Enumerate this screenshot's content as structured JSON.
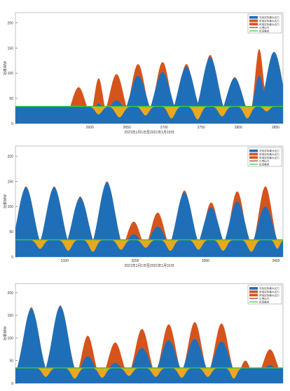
{
  "colors": {
    "pv": "#1f6fb8",
    "wind": "#d5541c",
    "load": "#e9a81e",
    "thermal": "#a52a2a",
    "baseline": "#33cc33"
  },
  "chart_data": [
    {
      "type": "area",
      "xlabel": "2021年1月1日至2021年1月15日",
      "ylabel": "功率/MW",
      "xlim": [
        2500,
        2860
      ],
      "ylim": [
        0,
        220
      ],
      "xticks": [
        2600,
        2650,
        2700,
        2750,
        2800,
        2850
      ],
      "yticks": [
        0,
        50,
        100,
        150,
        200
      ],
      "baseline": 34,
      "legend": [
        "光伏实际最大出力",
        "风电实际最大出力",
        "风电实际最大出力",
        "火电出力",
        "负荷需求"
      ],
      "legend_position": "top-right",
      "peaks": [
        {
          "x": 2585,
          "pv": 32,
          "wind": 72,
          "width": 16
        },
        {
          "x": 2612,
          "pv": 40,
          "wind": 90,
          "width": 10
        },
        {
          "x": 2636,
          "pv": 46,
          "wind": 98,
          "width": 16
        },
        {
          "x": 2665,
          "pv": 95,
          "wind": 118,
          "width": 16
        },
        {
          "x": 2698,
          "pv": 102,
          "wind": 122,
          "width": 16
        },
        {
          "x": 2730,
          "pv": 113,
          "wind": 118,
          "width": 16
        },
        {
          "x": 2762,
          "pv": 132,
          "wind": 136,
          "width": 16
        },
        {
          "x": 2795,
          "pv": 90,
          "wind": 92,
          "width": 16
        },
        {
          "x": 2828,
          "pv": 95,
          "wind": 148,
          "width": 10
        },
        {
          "x": 2848,
          "pv": 142,
          "wind": 142,
          "width": 16
        }
      ],
      "dips": [
        {
          "x": 2612,
          "depth": 16,
          "width": 14
        },
        {
          "x": 2640,
          "depth": 22,
          "width": 16
        },
        {
          "x": 2675,
          "depth": 18,
          "width": 14
        },
        {
          "x": 2710,
          "depth": 24,
          "width": 14
        },
        {
          "x": 2745,
          "depth": 26,
          "width": 14
        },
        {
          "x": 2778,
          "depth": 20,
          "width": 14
        },
        {
          "x": 2812,
          "depth": 24,
          "width": 14
        },
        {
          "x": 2838,
          "depth": 10,
          "width": 12
        }
      ]
    },
    {
      "type": "area",
      "xlabel": "2021年1月1日至2021年1月31日",
      "ylabel": "功率/MW",
      "xlim": [
        3030,
        3410
      ],
      "ylim": [
        0,
        220
      ],
      "xticks": [
        3100,
        3200,
        3300,
        3400
      ],
      "yticks": [
        0,
        50,
        100,
        150,
        200
      ],
      "baseline": 34,
      "legend": [
        "光伏实际最大出力",
        "风电实际最大出力",
        "风电实际最大出力",
        "火电出力",
        "负荷需求"
      ],
      "legend_position": "top-right",
      "peaks": [
        {
          "x": 3045,
          "pv": 138,
          "wind": 140,
          "width": 16
        },
        {
          "x": 3085,
          "pv": 138,
          "wind": 140,
          "width": 16
        },
        {
          "x": 3122,
          "pv": 118,
          "wind": 120,
          "width": 16
        },
        {
          "x": 3160,
          "pv": 148,
          "wind": 150,
          "width": 16
        },
        {
          "x": 3198,
          "pv": 45,
          "wind": 70,
          "width": 16
        },
        {
          "x": 3232,
          "pv": 60,
          "wind": 88,
          "width": 16
        },
        {
          "x": 3270,
          "pv": 128,
          "wind": 132,
          "width": 16
        },
        {
          "x": 3308,
          "pv": 98,
          "wind": 108,
          "width": 16
        },
        {
          "x": 3345,
          "pv": 110,
          "wind": 130,
          "width": 16
        },
        {
          "x": 3385,
          "pv": 100,
          "wind": 140,
          "width": 16
        }
      ],
      "dips": [
        {
          "x": 3065,
          "depth": 18,
          "width": 14
        },
        {
          "x": 3105,
          "depth": 22,
          "width": 14
        },
        {
          "x": 3140,
          "depth": 24,
          "width": 14
        },
        {
          "x": 3180,
          "depth": 20,
          "width": 14
        },
        {
          "x": 3215,
          "depth": 16,
          "width": 14
        },
        {
          "x": 3250,
          "depth": 22,
          "width": 14
        },
        {
          "x": 3290,
          "depth": 20,
          "width": 14
        },
        {
          "x": 3325,
          "depth": 22,
          "width": 14
        },
        {
          "x": 3365,
          "depth": 24,
          "width": 14
        },
        {
          "x": 3402,
          "depth": 18,
          "width": 10
        }
      ]
    },
    {
      "type": "area",
      "xlabel": "",
      "ylabel": "功率/MW",
      "xlim": [
        0,
        370
      ],
      "ylim": [
        0,
        220
      ],
      "xticks": [],
      "yticks": [
        0,
        50,
        100,
        150,
        200
      ],
      "baseline": 34,
      "legend": [
        "光伏实际最大出力",
        "风电实际最大出力",
        "风电实际最大出力",
        "火电出力",
        "负荷需求"
      ],
      "legend_position": "top-right",
      "peaks": [
        {
          "x": 22,
          "pv": 165,
          "wind": 168,
          "width": 16
        },
        {
          "x": 62,
          "pv": 170,
          "wind": 172,
          "width": 16
        },
        {
          "x": 100,
          "pv": 60,
          "wind": 105,
          "width": 14
        },
        {
          "x": 138,
          "pv": 45,
          "wind": 90,
          "width": 16
        },
        {
          "x": 175,
          "pv": 78,
          "wind": 120,
          "width": 16
        },
        {
          "x": 212,
          "pv": 95,
          "wind": 130,
          "width": 16
        },
        {
          "x": 248,
          "pv": 98,
          "wind": 135,
          "width": 16
        },
        {
          "x": 285,
          "pv": 92,
          "wind": 132,
          "width": 16
        },
        {
          "x": 318,
          "pv": 30,
          "wind": 50,
          "width": 12
        },
        {
          "x": 352,
          "pv": 40,
          "wind": 75,
          "width": 16
        }
      ],
      "dips": [
        {
          "x": 42,
          "depth": 20,
          "width": 14
        },
        {
          "x": 82,
          "depth": 24,
          "width": 14
        },
        {
          "x": 120,
          "depth": 22,
          "width": 14
        },
        {
          "x": 157,
          "depth": 18,
          "width": 14
        },
        {
          "x": 194,
          "depth": 20,
          "width": 14
        },
        {
          "x": 230,
          "depth": 22,
          "width": 14
        },
        {
          "x": 266,
          "depth": 20,
          "width": 14
        },
        {
          "x": 302,
          "depth": 24,
          "width": 12
        }
      ]
    }
  ]
}
